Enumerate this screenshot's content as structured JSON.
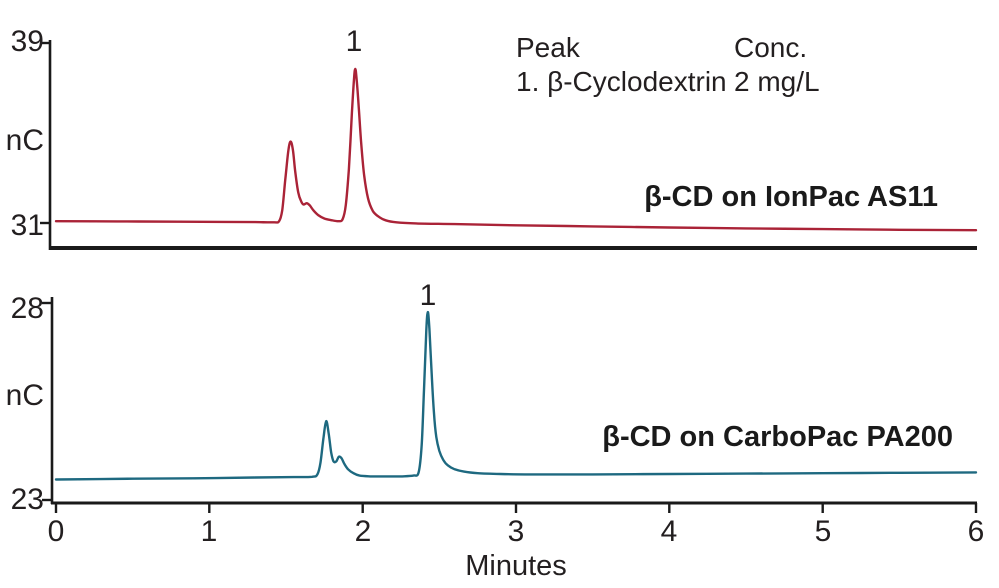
{
  "legend": {
    "header_peak": "Peak",
    "header_conc": "Conc.",
    "row_peak": "1. β-Cyclodextrin",
    "row_conc": "2 mg/L"
  },
  "x_axis": {
    "title": "Minutes",
    "tick_labels": [
      "0",
      "1",
      "2",
      "3",
      "4",
      "5",
      "6"
    ]
  },
  "chart_data": [
    {
      "type": "line",
      "title": "β-CD on IonPac AS11",
      "trace_color": "#aa2337",
      "ylabel": "nC",
      "xlabel": "Minutes",
      "y_tick_top": "39",
      "y_tick_bottom": "31",
      "y_top_value": 39,
      "y_bottom_value": 31,
      "x_range_minutes": [
        0,
        6
      ],
      "peak_label": "1",
      "peaks": [
        {
          "time_min": 1.53,
          "apex_nC": 34.6
        },
        {
          "time_min": 1.62,
          "apex_nC": 31.9
        },
        {
          "time_min": 1.95,
          "apex_nC": 37.9
        }
      ],
      "trace_points_min_nC": [
        [
          0.0,
          31.08
        ],
        [
          0.4,
          31.07
        ],
        [
          0.8,
          31.06
        ],
        [
          1.1,
          31.05
        ],
        [
          1.3,
          31.04
        ],
        [
          1.42,
          31.03
        ],
        [
          1.455,
          31.08
        ],
        [
          1.475,
          31.55
        ],
        [
          1.495,
          32.9
        ],
        [
          1.515,
          34.2
        ],
        [
          1.53,
          34.62
        ],
        [
          1.545,
          34.25
        ],
        [
          1.56,
          33.3
        ],
        [
          1.58,
          32.35
        ],
        [
          1.6,
          31.95
        ],
        [
          1.615,
          31.82
        ],
        [
          1.635,
          31.88
        ],
        [
          1.655,
          31.78
        ],
        [
          1.68,
          31.55
        ],
        [
          1.71,
          31.35
        ],
        [
          1.75,
          31.2
        ],
        [
          1.8,
          31.12
        ],
        [
          1.845,
          31.08
        ],
        [
          1.87,
          31.18
        ],
        [
          1.89,
          31.8
        ],
        [
          1.91,
          33.4
        ],
        [
          1.93,
          35.9
        ],
        [
          1.944,
          37.45
        ],
        [
          1.952,
          37.85
        ],
        [
          1.96,
          37.45
        ],
        [
          1.975,
          36.1
        ],
        [
          1.99,
          34.6
        ],
        [
          2.01,
          33.1
        ],
        [
          2.035,
          32.1
        ],
        [
          2.065,
          31.55
        ],
        [
          2.1,
          31.3
        ],
        [
          2.15,
          31.12
        ],
        [
          2.22,
          31.03
        ],
        [
          2.35,
          30.98
        ],
        [
          2.6,
          30.95
        ],
        [
          3.0,
          30.9
        ],
        [
          3.5,
          30.85
        ],
        [
          4.0,
          30.8
        ],
        [
          4.5,
          30.76
        ],
        [
          5.0,
          30.73
        ],
        [
          5.5,
          30.7
        ],
        [
          6.0,
          30.68
        ]
      ]
    },
    {
      "type": "line",
      "title": "β-CD on CarboPac PA200",
      "trace_color": "#1e6980",
      "ylabel": "nC",
      "xlabel": "Minutes",
      "y_tick_top": "28",
      "y_tick_bottom": "23",
      "y_top_value": 28,
      "y_bottom_value": 23,
      "x_range_minutes": [
        0,
        6
      ],
      "peak_label": "1",
      "peaks": [
        {
          "time_min": 1.77,
          "apex_nC": 25.0
        },
        {
          "time_min": 1.85,
          "apex_nC": 24.1
        },
        {
          "time_min": 2.43,
          "apex_nC": 27.8
        }
      ],
      "trace_points_min_nC": [
        [
          0.0,
          23.52
        ],
        [
          0.5,
          23.54
        ],
        [
          0.9,
          23.55
        ],
        [
          1.3,
          23.57
        ],
        [
          1.55,
          23.58
        ],
        [
          1.67,
          23.59
        ],
        [
          1.705,
          23.65
        ],
        [
          1.725,
          23.95
        ],
        [
          1.745,
          24.6
        ],
        [
          1.762,
          25.0
        ],
        [
          1.778,
          24.7
        ],
        [
          1.795,
          24.2
        ],
        [
          1.81,
          23.98
        ],
        [
          1.828,
          23.98
        ],
        [
          1.845,
          24.1
        ],
        [
          1.862,
          24.06
        ],
        [
          1.88,
          23.92
        ],
        [
          1.905,
          23.78
        ],
        [
          1.94,
          23.68
        ],
        [
          1.98,
          23.62
        ],
        [
          2.05,
          23.6
        ],
        [
          2.15,
          23.6
        ],
        [
          2.25,
          23.6
        ],
        [
          2.33,
          23.62
        ],
        [
          2.365,
          23.7
        ],
        [
          2.385,
          24.4
        ],
        [
          2.4,
          25.8
        ],
        [
          2.415,
          27.3
        ],
        [
          2.425,
          27.77
        ],
        [
          2.435,
          27.35
        ],
        [
          2.45,
          26.2
        ],
        [
          2.465,
          25.2
        ],
        [
          2.48,
          24.6
        ],
        [
          2.5,
          24.25
        ],
        [
          2.525,
          24.02
        ],
        [
          2.555,
          23.88
        ],
        [
          2.6,
          23.78
        ],
        [
          2.66,
          23.72
        ],
        [
          2.75,
          23.68
        ],
        [
          2.9,
          23.66
        ],
        [
          3.1,
          23.65
        ],
        [
          3.5,
          23.65
        ],
        [
          4.0,
          23.66
        ],
        [
          4.5,
          23.67
        ],
        [
          5.0,
          23.68
        ],
        [
          5.5,
          23.69
        ],
        [
          6.0,
          23.7
        ]
      ]
    }
  ]
}
